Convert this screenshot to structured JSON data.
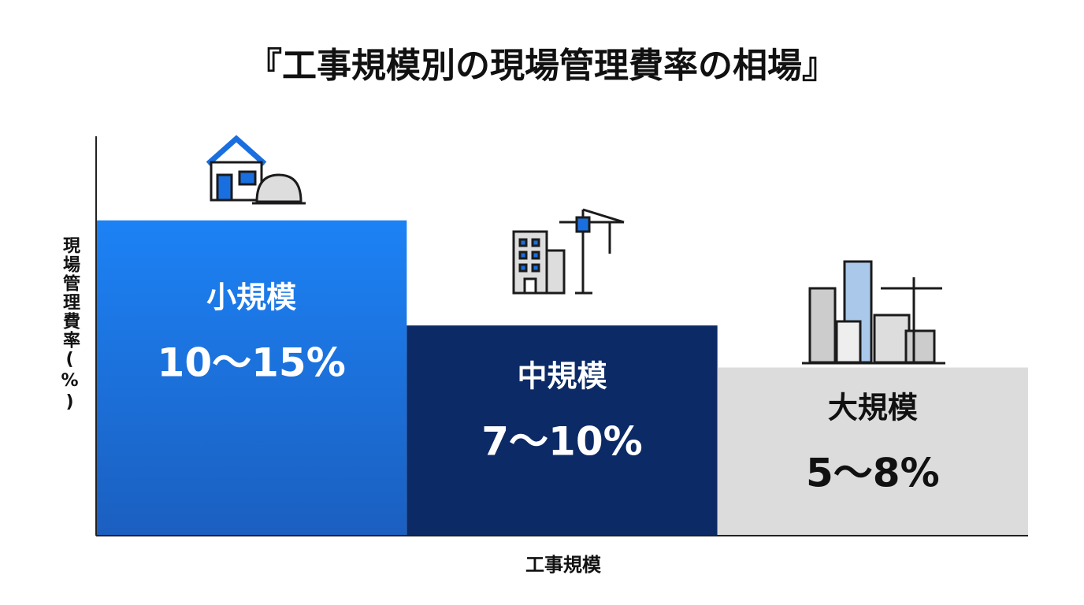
{
  "chart_data": {
    "type": "bar",
    "title": "『工事規模別の現場管理費率の相場』",
    "xlabel": "工事規模",
    "ylabel": "現場管理費率(%)",
    "categories": [
      "小規模",
      "中規模",
      "大規模"
    ],
    "values": [
      15,
      10,
      8
    ],
    "value_labels": [
      "10〜15%",
      "7〜10%",
      "5〜8%"
    ],
    "colors": [
      "#1a7cf0",
      "#0b2a66",
      "#dcdcdc"
    ],
    "label_colors": [
      "#ffffff",
      "#ffffff",
      "#111111"
    ],
    "ylim": [
      0,
      19
    ]
  }
}
